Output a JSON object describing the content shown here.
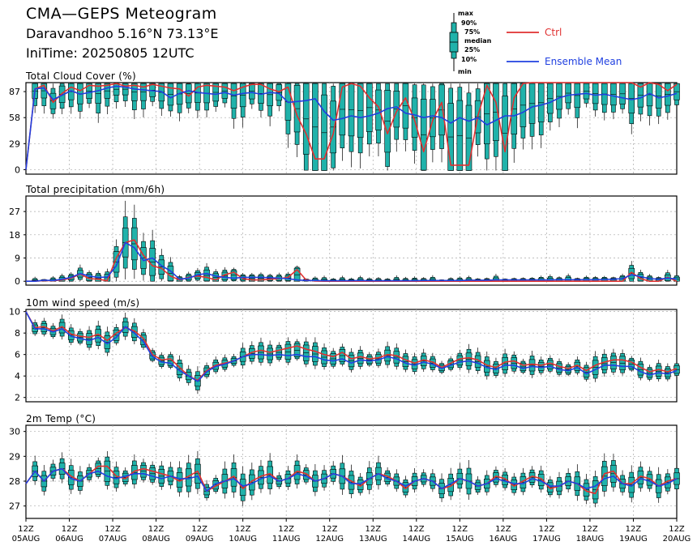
{
  "header": {
    "title": "CMA—GEPS Meteogram",
    "location": "Daravandhoo 5.16°N 73.13°E",
    "init": "IniTime: 20250805 12UTC"
  },
  "legend": {
    "box_labels": [
      "max",
      "90%",
      "75%",
      "median",
      "25%",
      "10%",
      "min"
    ],
    "ctrl": "Ctrl",
    "mean": "Ensemble Mean",
    "ctrl_color": "#e03030",
    "mean_color": "#2040e0",
    "box_color": "#20b2aa"
  },
  "x_labels": [
    [
      "12Z",
      "05AUG"
    ],
    [
      "12Z",
      "06AUG"
    ],
    [
      "12Z",
      "07AUG"
    ],
    [
      "12Z",
      "08AUG"
    ],
    [
      "12Z",
      "09AUG"
    ],
    [
      "12Z",
      "10AUG"
    ],
    [
      "12Z",
      "11AUG"
    ],
    [
      "12Z",
      "12AUG"
    ],
    [
      "12Z",
      "13AUG"
    ],
    [
      "12Z",
      "14AUG"
    ],
    [
      "12Z",
      "15AUG"
    ],
    [
      "12Z",
      "16AUG"
    ],
    [
      "12Z",
      "17AUG"
    ],
    [
      "12Z",
      "18AUG"
    ],
    [
      "12Z",
      "19AUG"
    ],
    [
      "12Z",
      "20AUG"
    ]
  ],
  "chart_data": [
    {
      "type": "box",
      "title": "Total Cloud Cover (%)",
      "ylim": [
        -5,
        97
      ],
      "yticks": [
        0,
        29,
        58,
        87
      ],
      "ctrl": [
        0,
        90,
        94,
        75,
        85,
        92,
        88,
        94,
        93,
        94,
        96,
        93,
        94,
        92,
        95,
        93,
        91,
        90,
        82,
        92,
        94,
        93,
        92,
        88,
        92,
        95,
        95,
        90,
        87,
        92,
        60,
        40,
        12,
        12,
        40,
        92,
        96,
        93,
        80,
        70,
        40,
        65,
        80,
        55,
        20,
        55,
        75,
        5,
        5,
        5,
        60,
        94,
        75,
        20,
        80,
        96,
        97,
        97,
        97,
        97,
        97,
        97,
        97,
        97,
        97,
        97,
        97,
        97,
        92,
        97,
        95,
        88,
        95
      ],
      "mean": [
        0,
        90,
        91,
        78,
        83,
        88,
        84,
        86,
        88,
        91,
        93,
        92,
        90,
        89,
        88,
        87,
        80,
        85,
        88,
        86,
        85,
        84,
        86,
        83,
        85,
        86,
        84,
        86,
        85,
        75,
        76,
        77,
        79,
        65,
        55,
        57,
        60,
        58,
        60,
        63,
        68,
        70,
        63,
        61,
        58,
        60,
        58,
        52,
        58,
        54,
        58,
        50,
        55,
        60,
        60,
        64,
        70,
        72,
        75,
        80,
        83,
        84,
        85,
        83,
        84,
        82,
        80,
        78,
        80,
        85,
        80,
        82,
        85
      ]
    },
    {
      "type": "box",
      "title": "Total precipitation (mm/6h)",
      "ylim": [
        -1.5,
        33
      ],
      "yticks": [
        0,
        9,
        18,
        27
      ],
      "ctrl": [
        0,
        0,
        0.3,
        0.2,
        0.5,
        1.2,
        2.8,
        1.0,
        0.8,
        0.2,
        9,
        15,
        16,
        10,
        6,
        5,
        2,
        0.5,
        1.5,
        2,
        1.5,
        0.5,
        2.5,
        3.5,
        1,
        0.5,
        0.5,
        0.8,
        1,
        1.5,
        4.5,
        0.5,
        0.1,
        0,
        0,
        0,
        0,
        0,
        0,
        0,
        0,
        0,
        0,
        0,
        0,
        0,
        0,
        0,
        0,
        0,
        0,
        0,
        0,
        0,
        0,
        0,
        0,
        0,
        0,
        0,
        0,
        0,
        0,
        0,
        0,
        0,
        0,
        3.5,
        1,
        0,
        0,
        1.5,
        0
      ],
      "mean": [
        0,
        0,
        0.4,
        0.3,
        0.8,
        1.5,
        3,
        2,
        1.5,
        1.6,
        6,
        15,
        13,
        8,
        9,
        6,
        4,
        0.8,
        1.2,
        2.5,
        3,
        2,
        1.5,
        1.2,
        1.5,
        1.5,
        1.5,
        1.4,
        1.2,
        1,
        0.5,
        0.3,
        0.3,
        0.2,
        0.2,
        0.2,
        0.2,
        0.3,
        0.2,
        0.2,
        0.2,
        0.2,
        0.2,
        0.2,
        0.3,
        0.3,
        0.3,
        0.3,
        0.3,
        0.4,
        0.4,
        0.4,
        0.5,
        0.5,
        0.5,
        0.5,
        0.5,
        0.5,
        0.5,
        0.6,
        0.6,
        0.6,
        0.6,
        0.6,
        0.7,
        0.8,
        1,
        2.5,
        1.8,
        1,
        0.8,
        1.2,
        0.9
      ]
    },
    {
      "type": "box",
      "title": "10m wind speed (m/s)",
      "ylim": [
        1.6,
        10.2
      ],
      "yticks": [
        2,
        4,
        6,
        8,
        10
      ],
      "ctrl": [
        10,
        8.5,
        8.6,
        8.2,
        8.6,
        7.9,
        7.7,
        7.6,
        7.9,
        7.3,
        8.0,
        8.5,
        8.2,
        7.5,
        6.0,
        5.5,
        5.6,
        4.8,
        4.0,
        3.6,
        4.5,
        5.0,
        5.2,
        5.4,
        5.8,
        6.2,
        6.4,
        6.2,
        6.4,
        6.6,
        6.8,
        6.5,
        6.3,
        6.0,
        5.8,
        6.2,
        5.6,
        5.8,
        5.6,
        5.7,
        6.0,
        5.9,
        5.5,
        5.2,
        5.5,
        5.3,
        4.8,
        5.2,
        5.6,
        5.7,
        5.5,
        5.0,
        4.8,
        5.3,
        5.4,
        5.0,
        5.1,
        5.0,
        5.2,
        4.9,
        4.7,
        5.0,
        4.5,
        5.0,
        5.3,
        5.5,
        5.5,
        5.3,
        4.8,
        4.4,
        4.6,
        4.4,
        4.7
      ],
      "mean": [
        10,
        8.4,
        8.4,
        8.1,
        8.4,
        7.7,
        7.5,
        7.3,
        7.6,
        7.0,
        7.6,
        8.6,
        8.0,
        7.2,
        5.8,
        5.3,
        5.2,
        4.5,
        4.0,
        3.5,
        4.4,
        4.9,
        5.1,
        5.4,
        5.8,
        6.0,
        6.0,
        5.9,
        6.0,
        5.9,
        6.0,
        5.8,
        5.8,
        5.5,
        5.4,
        5.6,
        5.2,
        5.5,
        5.4,
        5.5,
        5.8,
        5.6,
        5.2,
        5.0,
        5.3,
        5.1,
        4.7,
        5.0,
        5.3,
        5.4,
        5.2,
        4.8,
        4.6,
        5.0,
        5.0,
        4.7,
        4.9,
        4.8,
        4.9,
        4.6,
        4.5,
        4.8,
        4.2,
        4.6,
        5.0,
        5.0,
        4.9,
        4.9,
        4.4,
        4.1,
        4.3,
        4.2,
        4.5
      ]
    },
    {
      "type": "box",
      "title": "2m Temp (°C)",
      "ylim": [
        26.5,
        30.25
      ],
      "yticks": [
        27,
        28,
        29,
        30
      ],
      "ctrl": [
        27.9,
        28.4,
        28.0,
        28.4,
        28.5,
        28.2,
        28.0,
        28.3,
        28.6,
        28.6,
        28.2,
        28.1,
        28.4,
        28.5,
        28.4,
        28.3,
        28.2,
        28.0,
        28.2,
        28.4,
        27.6,
        27.8,
        28.0,
        28.2,
        27.7,
        28.0,
        28.2,
        28.3,
        28.0,
        28.1,
        28.4,
        28.3,
        28.0,
        28.1,
        28.3,
        28.2,
        28.0,
        27.8,
        28.1,
        28.3,
        28.2,
        28.0,
        27.7,
        28.0,
        28.1,
        28.0,
        27.7,
        27.8,
        28.1,
        28.0,
        27.8,
        27.9,
        28.2,
        28.1,
        27.8,
        28.0,
        28.2,
        28.1,
        27.7,
        27.8,
        28.0,
        27.9,
        27.6,
        27.5,
        28.3,
        28.4,
        27.9,
        27.9,
        28.2,
        28.1,
        27.8,
        28.0,
        28.1
      ],
      "mean": [
        27.9,
        28.4,
        28.0,
        28.4,
        28.5,
        28.1,
        28.0,
        28.3,
        28.4,
        28.2,
        28.1,
        28.2,
        28.3,
        28.3,
        28.2,
        28.1,
        28.2,
        28.1,
        28.1,
        28.2,
        27.6,
        27.9,
        28.0,
        28.1,
        27.8,
        27.9,
        28.1,
        28.2,
        28.0,
        28.1,
        28.3,
        28.2,
        28.0,
        28.1,
        28.3,
        28.2,
        27.9,
        27.9,
        28.1,
        28.3,
        28.1,
        28.0,
        27.8,
        28.0,
        28.1,
        28.0,
        27.7,
        27.9,
        28.1,
        28.0,
        27.8,
        27.9,
        28.1,
        28.0,
        27.9,
        27.9,
        28.1,
        28.0,
        27.8,
        27.8,
        28.0,
        27.9,
        27.7,
        27.8,
        28.1,
        28.2,
        27.9,
        27.8,
        28.1,
        28.0,
        27.8,
        27.9,
        28.1
      ]
    }
  ]
}
